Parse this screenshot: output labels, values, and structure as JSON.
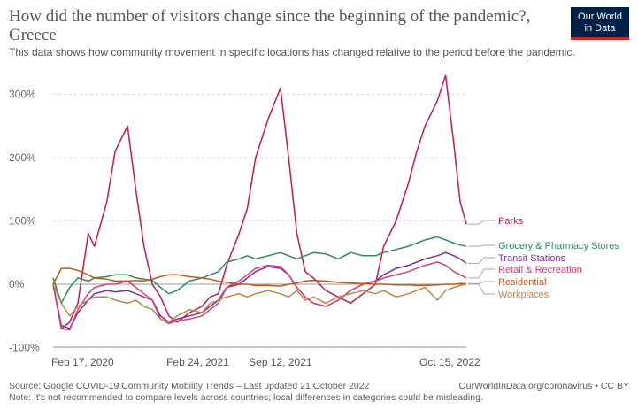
{
  "header": {
    "title": "How did the number of visitors change since the beginning of the pandemic?, Greece",
    "subtitle": "This data shows how community movement in specific locations has changed relative to the period before the pandemic.",
    "logo_line1": "Our World",
    "logo_line2": "in Data"
  },
  "footer": {
    "source": "Source: Google COVID-19 Community Mobility Trends – Last updated 21 October 2022",
    "note": "Note: It's not recommended to compare levels across countries; local differences in categories could be misleading.",
    "credit": "OurWorldInData.org/coronavirus • CC BY"
  },
  "chart_data": {
    "type": "line",
    "title": "How did the number of visitors change since the beginning of the pandemic?, Greece",
    "y_unit": "%",
    "ylim": [
      -100,
      330
    ],
    "y_ticks": [
      -100,
      0,
      100,
      200,
      300
    ],
    "y_tick_labels": [
      "-100%",
      "0%",
      "100%",
      "200%",
      "300%"
    ],
    "x_tick_labels": [
      "Feb 17, 2020",
      "Feb 24, 2021",
      "Sep 12, 2021",
      "Oct 15, 2022"
    ],
    "grid": true,
    "legend_placement": "right",
    "series": [
      {
        "name": "Parks",
        "color": "#c2185b",
        "values": [
          [
            0,
            0
          ],
          [
            0.02,
            -70
          ],
          [
            0.04,
            -60
          ],
          [
            0.06,
            -30
          ],
          [
            0.085,
            80
          ],
          [
            0.1,
            60
          ],
          [
            0.13,
            130
          ],
          [
            0.15,
            210
          ],
          [
            0.18,
            250
          ],
          [
            0.2,
            150
          ],
          [
            0.22,
            60
          ],
          [
            0.24,
            0
          ],
          [
            0.26,
            -20
          ],
          [
            0.28,
            -50
          ],
          [
            0.3,
            -60
          ],
          [
            0.33,
            -45
          ],
          [
            0.36,
            -35
          ],
          [
            0.38,
            -20
          ],
          [
            0.4,
            -15
          ],
          [
            0.42,
            30
          ],
          [
            0.45,
            80
          ],
          [
            0.47,
            120
          ],
          [
            0.49,
            200
          ],
          [
            0.52,
            260
          ],
          [
            0.55,
            310
          ],
          [
            0.57,
            200
          ],
          [
            0.59,
            80
          ],
          [
            0.61,
            20
          ],
          [
            0.63,
            10
          ],
          [
            0.66,
            -10
          ],
          [
            0.69,
            -20
          ],
          [
            0.72,
            -30
          ],
          [
            0.75,
            -15
          ],
          [
            0.78,
            0
          ],
          [
            0.8,
            60
          ],
          [
            0.83,
            100
          ],
          [
            0.86,
            160
          ],
          [
            0.88,
            210
          ],
          [
            0.9,
            250
          ],
          [
            0.93,
            290
          ],
          [
            0.95,
            330
          ],
          [
            0.97,
            220
          ],
          [
            0.985,
            130
          ],
          [
            1,
            95
          ]
        ]
      },
      {
        "name": "Grocery & Pharmacy Stores",
        "color": "#2e8b57",
        "values": [
          [
            0,
            10
          ],
          [
            0.02,
            -30
          ],
          [
            0.04,
            -5
          ],
          [
            0.06,
            10
          ],
          [
            0.085,
            5
          ],
          [
            0.1,
            10
          ],
          [
            0.13,
            12
          ],
          [
            0.15,
            15
          ],
          [
            0.18,
            15
          ],
          [
            0.2,
            10
          ],
          [
            0.22,
            8
          ],
          [
            0.24,
            6
          ],
          [
            0.26,
            -5
          ],
          [
            0.28,
            -15
          ],
          [
            0.3,
            -10
          ],
          [
            0.33,
            5
          ],
          [
            0.36,
            10
          ],
          [
            0.38,
            15
          ],
          [
            0.4,
            20
          ],
          [
            0.42,
            35
          ],
          [
            0.45,
            40
          ],
          [
            0.47,
            45
          ],
          [
            0.49,
            40
          ],
          [
            0.52,
            45
          ],
          [
            0.55,
            50
          ],
          [
            0.57,
            45
          ],
          [
            0.59,
            40
          ],
          [
            0.61,
            45
          ],
          [
            0.63,
            50
          ],
          [
            0.66,
            48
          ],
          [
            0.69,
            40
          ],
          [
            0.72,
            50
          ],
          [
            0.75,
            45
          ],
          [
            0.78,
            45
          ],
          [
            0.8,
            50
          ],
          [
            0.83,
            55
          ],
          [
            0.86,
            60
          ],
          [
            0.88,
            65
          ],
          [
            0.9,
            70
          ],
          [
            0.93,
            75
          ],
          [
            0.95,
            70
          ],
          [
            0.97,
            65
          ],
          [
            0.985,
            62
          ],
          [
            1,
            60
          ]
        ]
      },
      {
        "name": "Transit Stations",
        "color": "#7b3294",
        "values": [
          [
            0,
            0
          ],
          [
            0.02,
            -65
          ],
          [
            0.04,
            -70
          ],
          [
            0.06,
            -45
          ],
          [
            0.085,
            -25
          ],
          [
            0.1,
            -15
          ],
          [
            0.13,
            -10
          ],
          [
            0.15,
            -12
          ],
          [
            0.18,
            -10
          ],
          [
            0.2,
            -15
          ],
          [
            0.22,
            -20
          ],
          [
            0.24,
            -25
          ],
          [
            0.26,
            -50
          ],
          [
            0.28,
            -60
          ],
          [
            0.3,
            -55
          ],
          [
            0.33,
            -50
          ],
          [
            0.36,
            -45
          ],
          [
            0.38,
            -35
          ],
          [
            0.4,
            -25
          ],
          [
            0.42,
            -5
          ],
          [
            0.45,
            0
          ],
          [
            0.47,
            10
          ],
          [
            0.49,
            20
          ],
          [
            0.52,
            28
          ],
          [
            0.55,
            25
          ],
          [
            0.57,
            15
          ],
          [
            0.59,
            -5
          ],
          [
            0.61,
            -20
          ],
          [
            0.63,
            -30
          ],
          [
            0.66,
            -35
          ],
          [
            0.69,
            -25
          ],
          [
            0.72,
            -10
          ],
          [
            0.75,
            0
          ],
          [
            0.78,
            5
          ],
          [
            0.8,
            15
          ],
          [
            0.83,
            25
          ],
          [
            0.86,
            30
          ],
          [
            0.88,
            35
          ],
          [
            0.9,
            40
          ],
          [
            0.93,
            45
          ],
          [
            0.95,
            50
          ],
          [
            0.97,
            45
          ],
          [
            0.985,
            40
          ],
          [
            1,
            33
          ]
        ]
      },
      {
        "name": "Retail & Recreation",
        "color": "#d6407a",
        "values": [
          [
            0,
            0
          ],
          [
            0.02,
            -70
          ],
          [
            0.04,
            -72
          ],
          [
            0.06,
            -40
          ],
          [
            0.085,
            -15
          ],
          [
            0.1,
            -5
          ],
          [
            0.13,
            0
          ],
          [
            0.15,
            0
          ],
          [
            0.18,
            5
          ],
          [
            0.2,
            -5
          ],
          [
            0.22,
            -15
          ],
          [
            0.24,
            -25
          ],
          [
            0.26,
            -55
          ],
          [
            0.28,
            -62
          ],
          [
            0.3,
            -58
          ],
          [
            0.33,
            -55
          ],
          [
            0.36,
            -50
          ],
          [
            0.38,
            -40
          ],
          [
            0.4,
            -30
          ],
          [
            0.42,
            -5
          ],
          [
            0.45,
            5
          ],
          [
            0.47,
            15
          ],
          [
            0.49,
            25
          ],
          [
            0.52,
            30
          ],
          [
            0.55,
            28
          ],
          [
            0.57,
            15
          ],
          [
            0.59,
            -5
          ],
          [
            0.61,
            -20
          ],
          [
            0.63,
            -30
          ],
          [
            0.66,
            -35
          ],
          [
            0.69,
            -25
          ],
          [
            0.72,
            -10
          ],
          [
            0.75,
            0
          ],
          [
            0.78,
            5
          ],
          [
            0.8,
            10
          ],
          [
            0.83,
            15
          ],
          [
            0.86,
            20
          ],
          [
            0.88,
            25
          ],
          [
            0.9,
            30
          ],
          [
            0.93,
            35
          ],
          [
            0.95,
            30
          ],
          [
            0.97,
            20
          ],
          [
            0.985,
            15
          ],
          [
            1,
            10
          ]
        ]
      },
      {
        "name": "Residential",
        "color": "#c05917",
        "values": [
          [
            0,
            0
          ],
          [
            0.02,
            25
          ],
          [
            0.04,
            25
          ],
          [
            0.06,
            22
          ],
          [
            0.085,
            15
          ],
          [
            0.1,
            10
          ],
          [
            0.13,
            8
          ],
          [
            0.15,
            5
          ],
          [
            0.18,
            5
          ],
          [
            0.2,
            6
          ],
          [
            0.22,
            5
          ],
          [
            0.24,
            8
          ],
          [
            0.26,
            12
          ],
          [
            0.28,
            15
          ],
          [
            0.3,
            15
          ],
          [
            0.33,
            12
          ],
          [
            0.36,
            10
          ],
          [
            0.38,
            8
          ],
          [
            0.4,
            5
          ],
          [
            0.42,
            3
          ],
          [
            0.45,
            0
          ],
          [
            0.47,
            0
          ],
          [
            0.49,
            -2
          ],
          [
            0.52,
            -2
          ],
          [
            0.55,
            -3
          ],
          [
            0.57,
            0
          ],
          [
            0.59,
            2
          ],
          [
            0.61,
            5
          ],
          [
            0.63,
            6
          ],
          [
            0.66,
            5
          ],
          [
            0.69,
            3
          ],
          [
            0.72,
            2
          ],
          [
            0.75,
            1
          ],
          [
            0.78,
            0
          ],
          [
            0.8,
            0
          ],
          [
            0.83,
            -1
          ],
          [
            0.86,
            -1
          ],
          [
            0.88,
            -2
          ],
          [
            0.9,
            -2
          ],
          [
            0.93,
            -1
          ],
          [
            0.95,
            0
          ],
          [
            0.97,
            0
          ],
          [
            0.985,
            1
          ],
          [
            1,
            1
          ]
        ]
      },
      {
        "name": "Workplaces",
        "color": "#b8884b",
        "values": [
          [
            0,
            0
          ],
          [
            0.02,
            -30
          ],
          [
            0.04,
            -50
          ],
          [
            0.06,
            -35
          ],
          [
            0.085,
            -25
          ],
          [
            0.1,
            -20
          ],
          [
            0.13,
            -20
          ],
          [
            0.15,
            -25
          ],
          [
            0.18,
            -30
          ],
          [
            0.2,
            -25
          ],
          [
            0.22,
            -35
          ],
          [
            0.24,
            -40
          ],
          [
            0.26,
            -55
          ],
          [
            0.28,
            -60
          ],
          [
            0.3,
            -50
          ],
          [
            0.33,
            -40
          ],
          [
            0.36,
            -45
          ],
          [
            0.38,
            -30
          ],
          [
            0.4,
            -25
          ],
          [
            0.42,
            -20
          ],
          [
            0.45,
            -15
          ],
          [
            0.47,
            -20
          ],
          [
            0.49,
            -15
          ],
          [
            0.52,
            -10
          ],
          [
            0.55,
            -15
          ],
          [
            0.57,
            -20
          ],
          [
            0.59,
            -10
          ],
          [
            0.61,
            -25
          ],
          [
            0.63,
            -20
          ],
          [
            0.66,
            -30
          ],
          [
            0.69,
            -20
          ],
          [
            0.72,
            -15
          ],
          [
            0.75,
            -10
          ],
          [
            0.78,
            -15
          ],
          [
            0.8,
            -10
          ],
          [
            0.83,
            -20
          ],
          [
            0.86,
            -15
          ],
          [
            0.88,
            -10
          ],
          [
            0.9,
            -5
          ],
          [
            0.93,
            -25
          ],
          [
            0.95,
            -10
          ],
          [
            0.97,
            -5
          ],
          [
            0.985,
            -2
          ],
          [
            1,
            0
          ]
        ]
      }
    ]
  }
}
